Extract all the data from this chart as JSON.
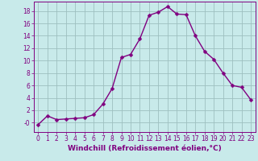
{
  "x": [
    0,
    1,
    2,
    3,
    4,
    5,
    6,
    7,
    8,
    9,
    10,
    11,
    12,
    13,
    14,
    15,
    16,
    17,
    18,
    19,
    20,
    21,
    22,
    23
  ],
  "y": [
    -0.3,
    1.1,
    0.5,
    0.6,
    0.7,
    0.8,
    1.3,
    3.0,
    5.5,
    10.5,
    11.0,
    13.5,
    17.3,
    17.8,
    18.7,
    17.5,
    17.4,
    14.0,
    11.5,
    10.2,
    8.0,
    6.0,
    5.7,
    3.7
  ],
  "line_color": "#800080",
  "marker_color": "#800080",
  "bg_color": "#c8eaea",
  "grid_color": "#9dbfbf",
  "xlabel": "Windchill (Refroidissement éolien,°C)",
  "xlim": [
    -0.5,
    23.5
  ],
  "ylim": [
    -1.5,
    19.5
  ],
  "yticks": [
    0,
    2,
    4,
    6,
    8,
    10,
    12,
    14,
    16,
    18
  ],
  "ytick_labels": [
    "-0",
    "2",
    "4",
    "6",
    "8",
    "10",
    "12",
    "14",
    "16",
    "18"
  ],
  "xticks": [
    0,
    1,
    2,
    3,
    4,
    5,
    6,
    7,
    8,
    9,
    10,
    11,
    12,
    13,
    14,
    15,
    16,
    17,
    18,
    19,
    20,
    21,
    22,
    23
  ],
  "tick_label_color": "#800080",
  "tick_label_fontsize": 5.5,
  "xlabel_fontsize": 6.5,
  "line_width": 1.0,
  "marker_size": 2.5
}
